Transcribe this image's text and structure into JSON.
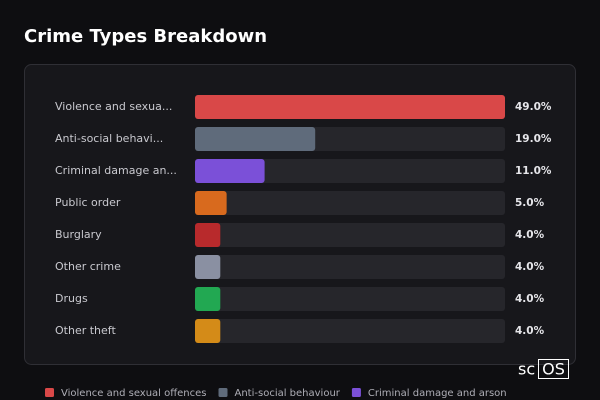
{
  "chart_data": {
    "type": "hbar",
    "title": "Crime Types Breakdown",
    "categories": [
      "Violence and sexua...",
      "Anti-social behavi...",
      "Criminal damage an...",
      "Public order",
      "Burglary",
      "Other crime",
      "Drugs",
      "Other theft"
    ],
    "values": [
      49.0,
      19.0,
      11.0,
      5.0,
      4.0,
      4.0,
      4.0,
      4.0
    ],
    "value_labels": [
      "49.0%",
      "19.0%",
      "11.0%",
      "5.0%",
      "4.0%",
      "4.0%",
      "4.0%",
      "4.0%"
    ],
    "colors": [
      "#d94848",
      "#5f6b7b",
      "#7b50d8",
      "#d86a1e",
      "#b82a2c",
      "#8a90a2",
      "#22a852",
      "#d48b18"
    ],
    "xlim": [
      0,
      49
    ],
    "legend": [
      {
        "name": "Violence and sexual offences",
        "color": "#d94848"
      },
      {
        "name": "Anti-social behaviour",
        "color": "#5f6b7b"
      },
      {
        "name": "Criminal damage and arson",
        "color": "#7b50d8"
      }
    ]
  },
  "watermark": [
    "sc",
    "OS"
  ]
}
